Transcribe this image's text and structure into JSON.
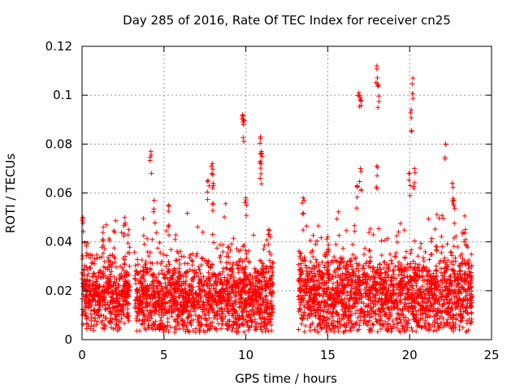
{
  "chart_data": {
    "type": "scatter",
    "title": "Day 285 of 2016, Rate Of TEC Index for receiver cn25",
    "xlabel": "GPS time / hours",
    "ylabel": "ROTI / TECUs",
    "xlim": [
      0,
      25
    ],
    "ylim": [
      0,
      0.12
    ],
    "xticks": [
      0,
      5,
      10,
      15,
      20,
      25
    ],
    "xtick_labels": [
      "0",
      "5",
      "10",
      "15",
      "20",
      "25"
    ],
    "yticks": [
      0,
      0.02,
      0.04,
      0.06,
      0.08,
      0.1,
      0.12
    ],
    "ytick_labels": [
      "0",
      "0.02",
      "0.04",
      "0.06",
      "0.08",
      "0.1",
      "0.12"
    ],
    "grid": true,
    "marker": "+",
    "series": [
      {
        "name": "ROTI",
        "color": "#ff0000",
        "segments": [
          {
            "start": 0.0,
            "end": 2.9,
            "base": 0.018,
            "spread": 0.014
          },
          {
            "start": 3.2,
            "end": 11.7,
            "base": 0.017,
            "spread": 0.015
          },
          {
            "start": 13.2,
            "end": 23.8,
            "base": 0.018,
            "spread": 0.016
          }
        ],
        "peaks": [
          {
            "x": 0.05,
            "y": 0.05
          },
          {
            "x": 1.3,
            "y": 0.046
          },
          {
            "x": 2.6,
            "y": 0.05
          },
          {
            "x": 2.85,
            "y": 0.045
          },
          {
            "x": 4.2,
            "y": 0.077
          },
          {
            "x": 4.4,
            "y": 0.057
          },
          {
            "x": 5.3,
            "y": 0.055
          },
          {
            "x": 7.7,
            "y": 0.065
          },
          {
            "x": 7.95,
            "y": 0.072
          },
          {
            "x": 8.0,
            "y": 0.064
          },
          {
            "x": 9.8,
            "y": 0.092
          },
          {
            "x": 9.85,
            "y": 0.09
          },
          {
            "x": 10.0,
            "y": 0.058
          },
          {
            "x": 10.9,
            "y": 0.083
          },
          {
            "x": 10.95,
            "y": 0.077
          },
          {
            "x": 10.9,
            "y": 0.073
          },
          {
            "x": 11.4,
            "y": 0.045
          },
          {
            "x": 13.5,
            "y": 0.058
          },
          {
            "x": 15.0,
            "y": 0.042
          },
          {
            "x": 16.9,
            "y": 0.101
          },
          {
            "x": 17.0,
            "y": 0.099
          },
          {
            "x": 17.0,
            "y": 0.07
          },
          {
            "x": 16.8,
            "y": 0.063
          },
          {
            "x": 18.0,
            "y": 0.112
          },
          {
            "x": 18.1,
            "y": 0.104
          },
          {
            "x": 18.0,
            "y": 0.071
          },
          {
            "x": 20.2,
            "y": 0.107
          },
          {
            "x": 20.1,
            "y": 0.094
          },
          {
            "x": 20.3,
            "y": 0.07
          },
          {
            "x": 20.0,
            "y": 0.068
          },
          {
            "x": 22.2,
            "y": 0.08
          },
          {
            "x": 22.6,
            "y": 0.064
          },
          {
            "x": 22.7,
            "y": 0.057
          },
          {
            "x": 23.4,
            "y": 0.045
          }
        ]
      }
    ]
  }
}
